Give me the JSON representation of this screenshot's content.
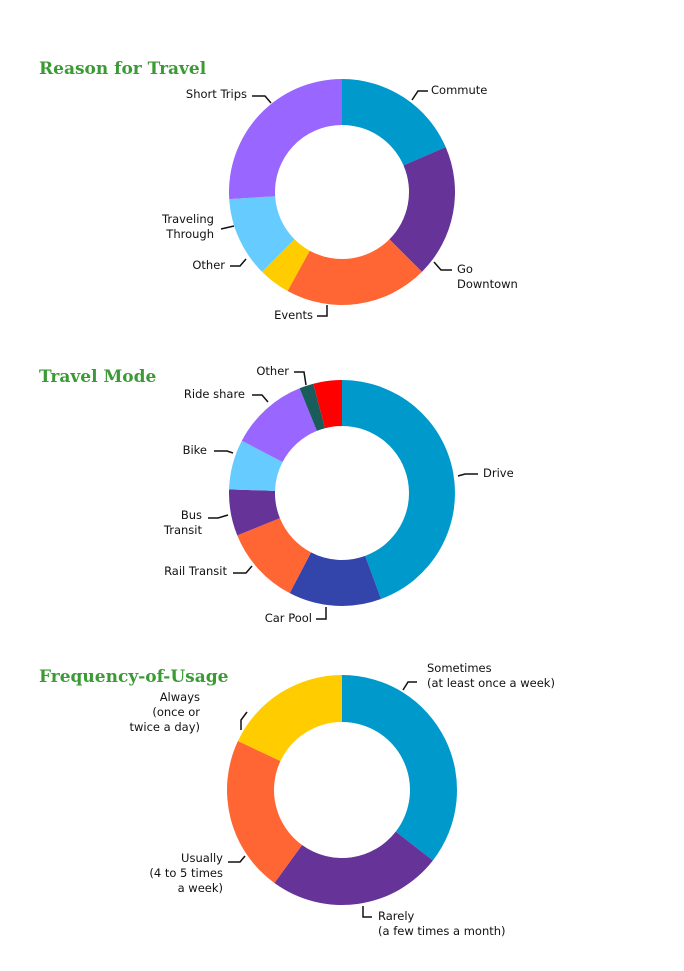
{
  "chart_data": [
    {
      "type": "pie",
      "title": "Reason for Travel",
      "categories": [
        "Commute",
        "Go Downtown",
        "Events",
        "Other",
        "Traveling Through",
        "Short Trips"
      ],
      "values": [
        18.5,
        19,
        20.5,
        4.5,
        11.5,
        26
      ],
      "labels": [
        [
          "Commute"
        ],
        [
          "Go",
          "Downtown"
        ],
        [
          "Events"
        ],
        [
          "Other"
        ],
        [
          "Traveling",
          "Through"
        ],
        [
          "Short Trips"
        ]
      ],
      "colors": [
        "#0099cc",
        "#663399",
        "#ff6633",
        "#ffcc00",
        "#66ccff",
        "#9966ff"
      ]
    },
    {
      "type": "pie",
      "title": "Travel Mode",
      "categories": [
        "Drive",
        "Car Pool",
        "Rail Transit",
        "Bus Transit",
        "Bike",
        "Ride share",
        "Other",
        ""
      ],
      "values": [
        43.5,
        13,
        11,
        6.5,
        7,
        11,
        2,
        4
      ],
      "labels": [
        [
          "Drive"
        ],
        [
          "Car Pool"
        ],
        [
          "Rail Transit"
        ],
        [
          "Bus",
          "Transit"
        ],
        [
          "Bike"
        ],
        [
          "Ride share"
        ],
        [
          "Other"
        ],
        []
      ],
      "colors": [
        "#0099cc",
        "#3344aa",
        "#ff6633",
        "#663399",
        "#66ccff",
        "#9966ff",
        "#1a5c5c",
        "#ff0000"
      ]
    },
    {
      "type": "pie",
      "title": "Frequency-of-Usage",
      "categories": [
        "Sometimes (at least once a week)",
        "Rarely (a few times a month)",
        "Usually (4 to 5 times a week)",
        "Always (once or twice a day)"
      ],
      "values": [
        35.5,
        24.5,
        22,
        18
      ],
      "labels": [
        [
          "Sometimes",
          "(at least once a week)"
        ],
        [
          "Rarely",
          "(a few times a month)"
        ],
        [
          "Usually",
          "(4 to 5 times",
          "a week)"
        ],
        [
          "Always",
          "(once or",
          "twice a day)"
        ]
      ],
      "colors": [
        "#0099cc",
        "#663399",
        "#ff6633",
        "#ffcc00"
      ]
    }
  ]
}
